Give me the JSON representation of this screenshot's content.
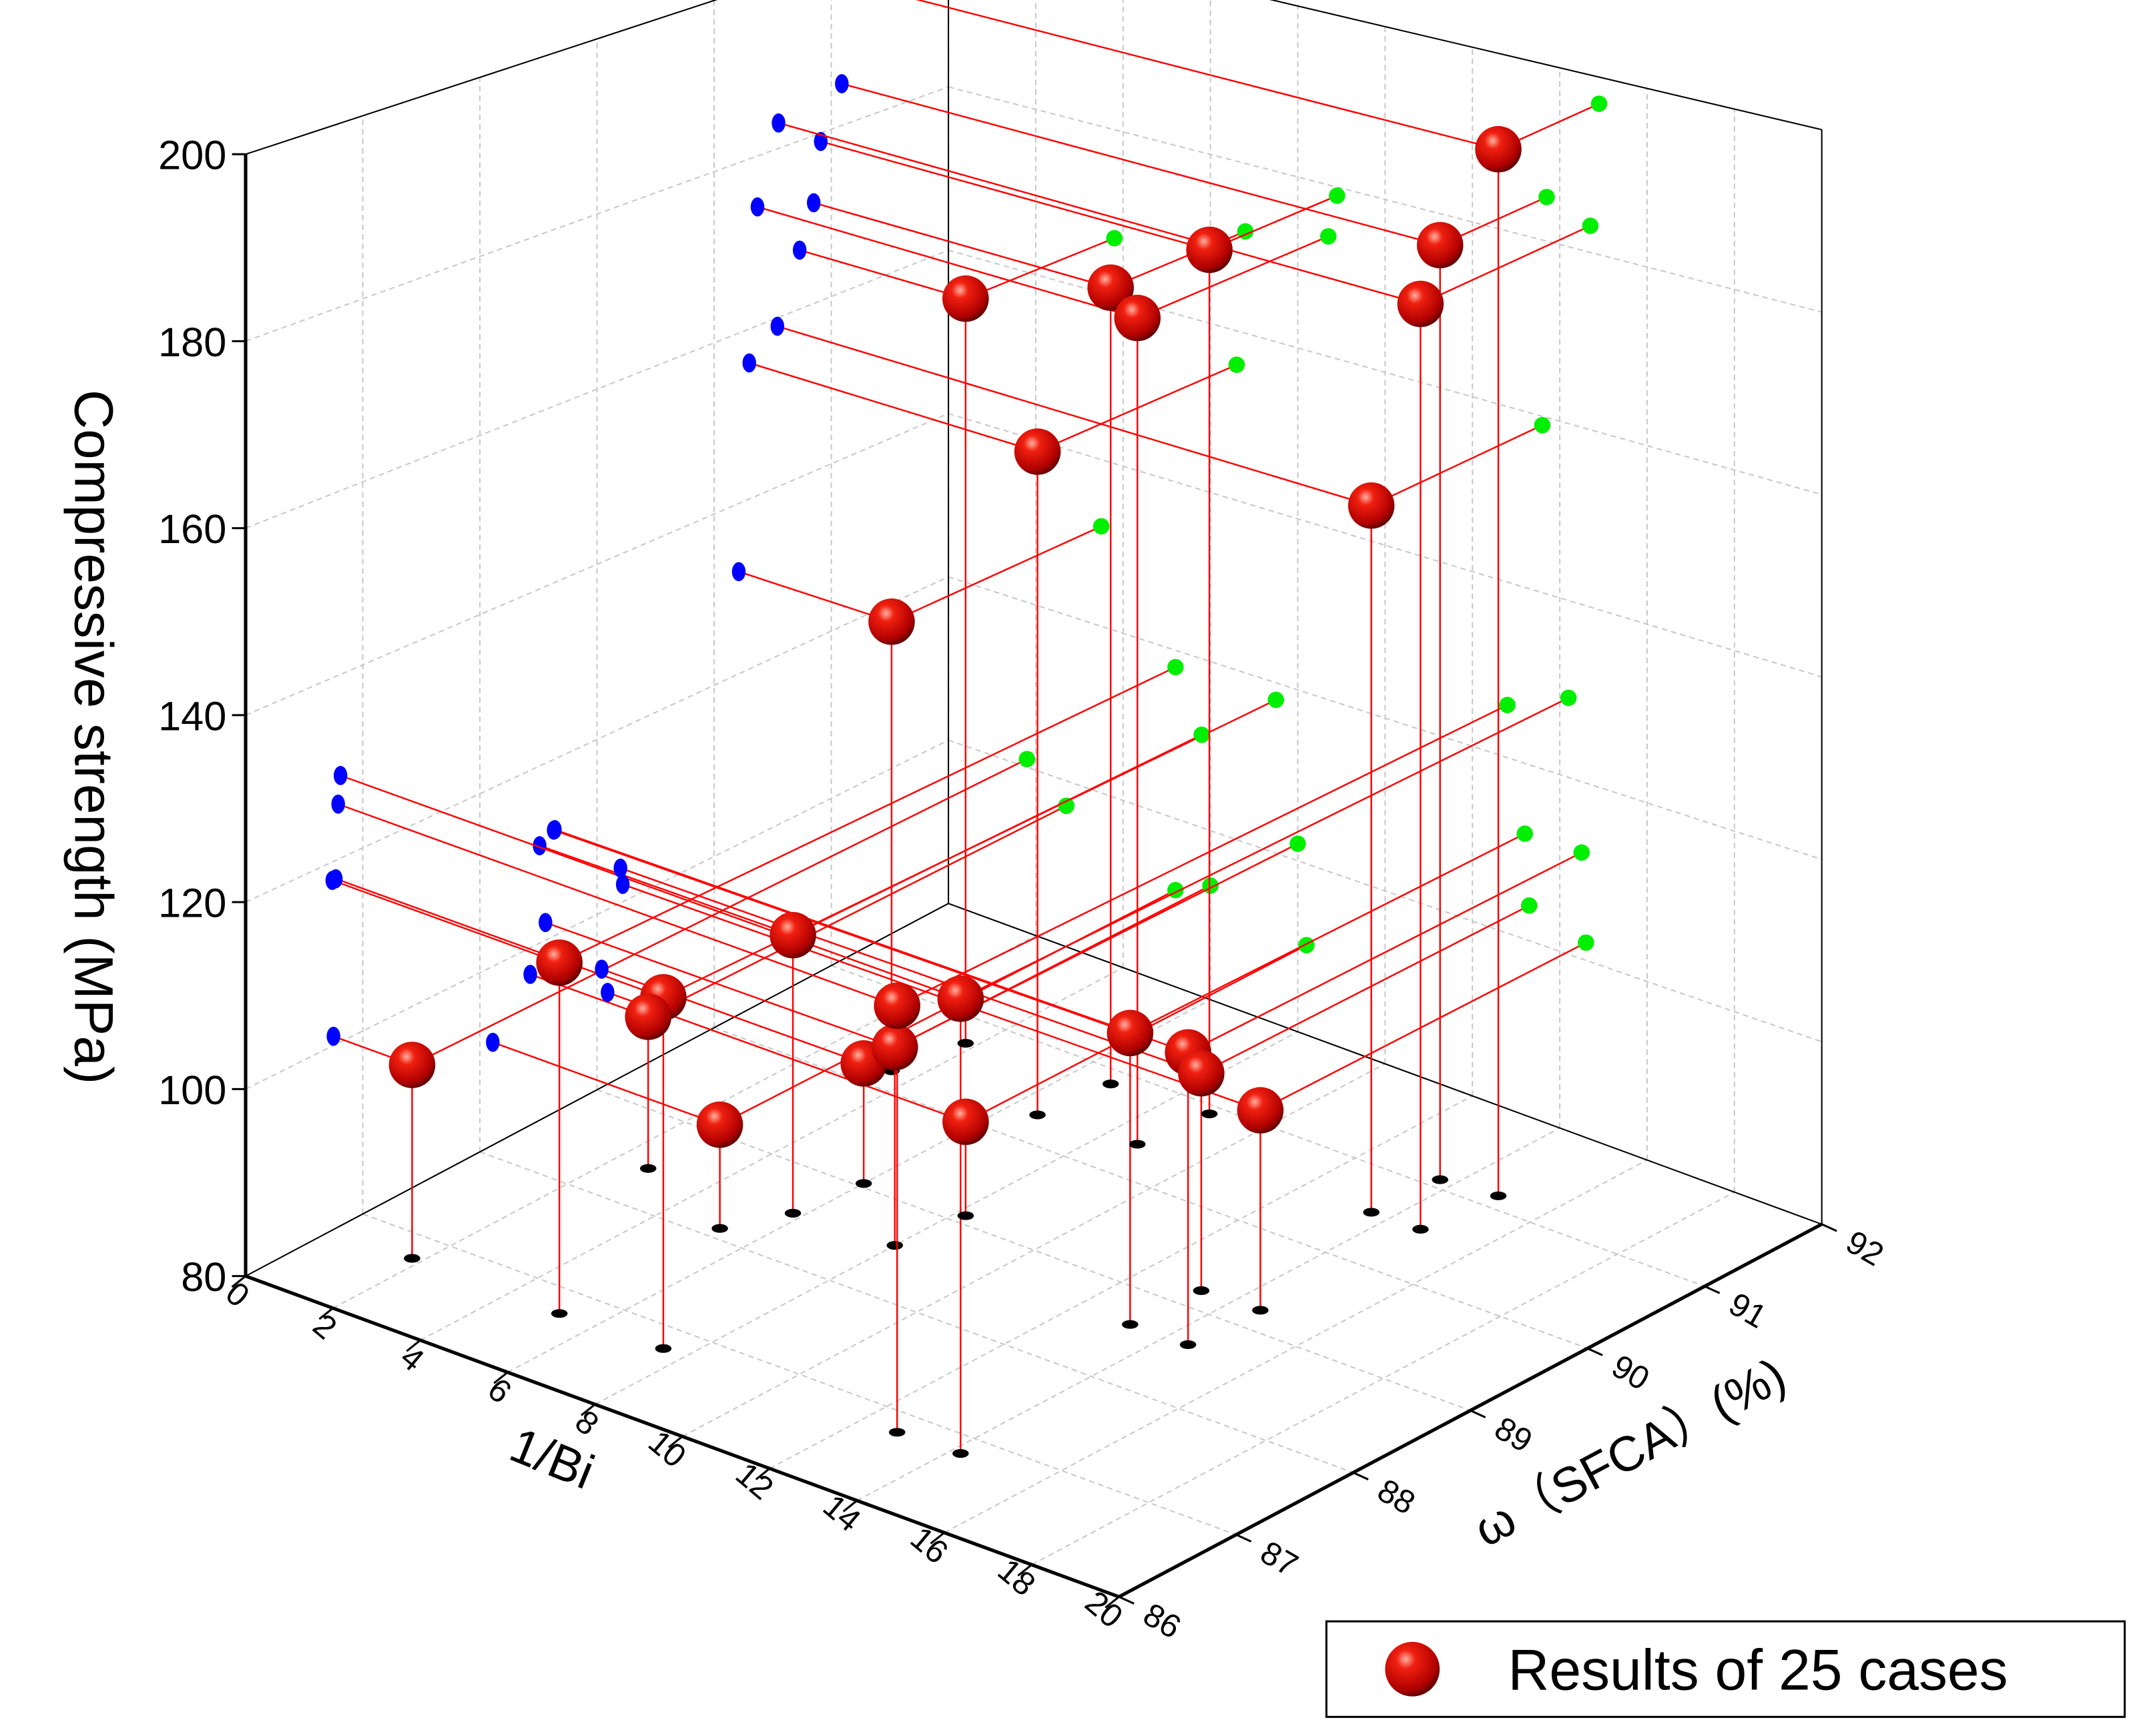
{
  "chart_data": {
    "type": "scatter3d",
    "x_label": "1/Bi",
    "y_label": "ω（SFCA）(%)",
    "z_label": "Compressive strength (MPa)",
    "xlim": [
      0,
      20
    ],
    "ylim": [
      86,
      92
    ],
    "zlim": [
      80,
      200
    ],
    "xticks": [
      0,
      2,
      4,
      6,
      8,
      10,
      12,
      14,
      16,
      18,
      20
    ],
    "yticks": [
      86,
      87,
      88,
      89,
      90,
      91,
      92
    ],
    "zticks": [
      80,
      100,
      120,
      140,
      160,
      180,
      200
    ],
    "grid": true,
    "legend": "bottom-right",
    "drop_line_color": "#ff0000",
    "projection_colors": {
      "x_wall": "#0000ff",
      "y_wall": "#00ee00",
      "floor": "#000000"
    },
    "series": [
      {
        "name": "Results of 25 cases",
        "color": "#e00000",
        "x": [
          1.8,
          5.2,
          7.5,
          2.7,
          5.2,
          5.8,
          6.0,
          3.5,
          8.0,
          12.8,
          14.2,
          3.8,
          8.2,
          6.6,
          6.8,
          13.2,
          8.7,
          14.5,
          13.3,
          8.9,
          14.6,
          13.6,
          14.7,
          13.7,
          14.9
        ],
        "y": [
          86.75,
          86.74,
          86.77,
          88.43,
          88.11,
          88.51,
          89.04,
          90.21,
          88.56,
          86.79,
          86.81,
          90.73,
          89.09,
          90.3,
          90.85,
          88.63,
          90.37,
          88.64,
          89.2,
          90.91,
          89.22,
          90.54,
          90.55,
          91.09,
          91.14
        ],
        "z": [
          101,
          118,
          118,
          97,
          91.5,
          111,
          93.5,
          132,
          102,
          126,
          129,
          167,
          90.5,
          156,
          172,
          112,
          174,
          112,
          104,
          179,
          102,
          159,
          183,
          185,
          197
        ]
      }
    ]
  }
}
